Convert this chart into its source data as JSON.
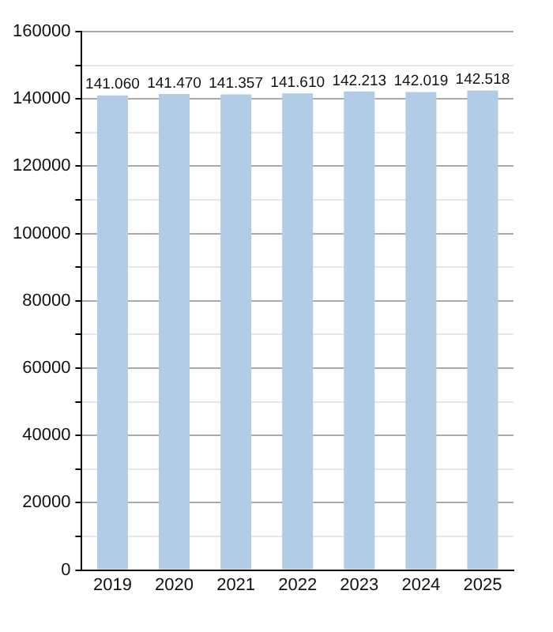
{
  "chart_data": {
    "type": "bar",
    "categories": [
      "2019",
      "2020",
      "2021",
      "2022",
      "2023",
      "2024",
      "2025"
    ],
    "values": [
      141060,
      141470,
      141357,
      141610,
      142213,
      142019,
      142518
    ],
    "value_labels": [
      "141.060",
      "141.470",
      "141.357",
      "141.610",
      "142.213",
      "142.019",
      "142.518"
    ],
    "color": "#b3cce5",
    "ylim": [
      0,
      160000
    ],
    "yticks": [
      0,
      {
        "value": 10000,
        "label": null
      },
      20000,
      {
        "value": 30000,
        "label": null
      },
      40000,
      {
        "value": 50000,
        "label": null
      },
      60000,
      {
        "value": 70000,
        "label": null
      },
      80000,
      {
        "value": 90000,
        "label": null
      },
      100000,
      {
        "value": 110000,
        "label": null
      },
      120000,
      {
        "value": 130000,
        "label": null
      },
      140000,
      {
        "value": 150000,
        "label": null
      },
      160000
    ],
    "grid": "y"
  }
}
